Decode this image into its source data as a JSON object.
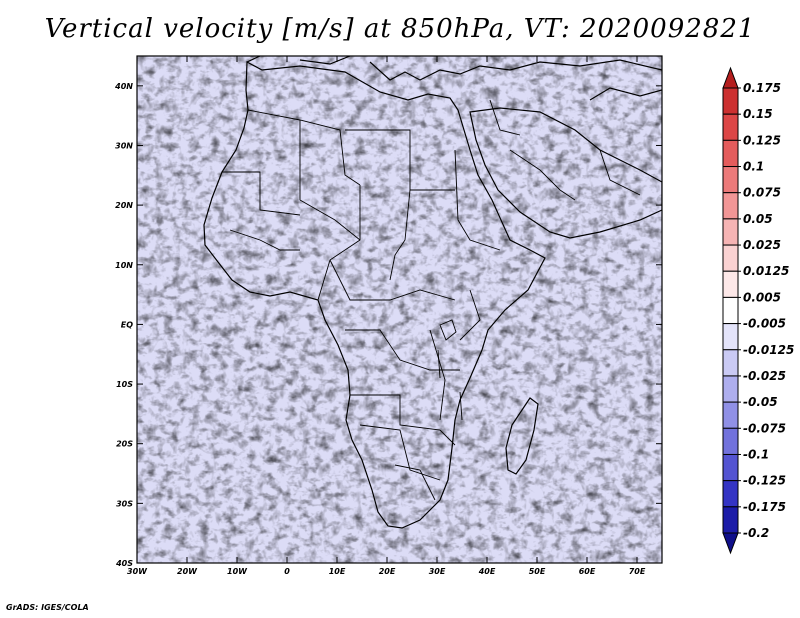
{
  "title": "Vertical velocity [m/s] at 850hPa, VT: 2020092821",
  "credit": "GrADS: IGES/COLA",
  "map": {
    "lat_labels": [
      "40N",
      "30N",
      "20N",
      "10N",
      "EQ",
      "10S",
      "20S",
      "30S",
      "40S"
    ],
    "lat_values": [
      40,
      30,
      20,
      10,
      0,
      -10,
      -20,
      -30,
      -40
    ],
    "lon_labels": [
      "30W",
      "20W",
      "10W",
      "0",
      "10E",
      "20E",
      "30E",
      "40E",
      "50E",
      "60E",
      "70E"
    ],
    "lon_values": [
      -30,
      -20,
      -10,
      0,
      10,
      20,
      30,
      40,
      50,
      60,
      70
    ],
    "lon_range": [
      -30,
      75
    ],
    "lat_range": [
      -40,
      45
    ]
  },
  "colorbar": {
    "labels": [
      "0.175",
      "0.15",
      "0.125",
      "0.1",
      "0.075",
      "0.05",
      "0.025",
      "0.0125",
      "0.005",
      "-0.005",
      "-0.0125",
      "-0.025",
      "-0.05",
      "-0.075",
      "-0.1",
      "-0.125",
      "-0.175",
      "-0.2"
    ],
    "colors": [
      "#b41e1e",
      "#cc3030",
      "#dc4646",
      "#e45c5c",
      "#ec7a7a",
      "#f29696",
      "#f6b4b4",
      "#fad2d2",
      "#fde8e8",
      "#ffffff",
      "#e4e4fa",
      "#cacaf4",
      "#aeaeee",
      "#9090e6",
      "#7272dc",
      "#5454d2",
      "#3434c4",
      "#1c1ca8",
      "#0f0f8a"
    ]
  }
}
